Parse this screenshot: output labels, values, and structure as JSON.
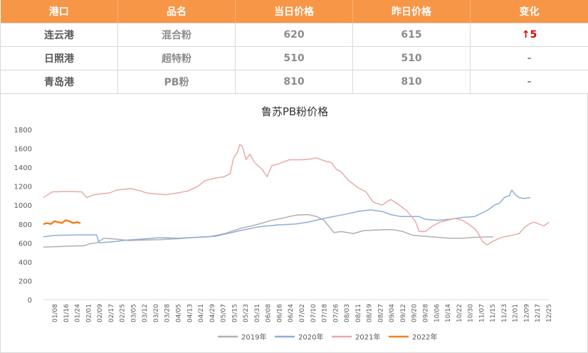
{
  "table": {
    "headers": [
      "港口",
      "品名",
      "当日价格",
      "昨日价格",
      "变化"
    ],
    "rows": [
      {
        "port": "连云港",
        "product": "混合粉",
        "today": "620",
        "yesterday": "615",
        "change": "↑5",
        "up": true
      },
      {
        "port": "日照港",
        "product": "超特粉",
        "today": "510",
        "yesterday": "510",
        "change": "-",
        "up": false
      },
      {
        "port": "青岛港",
        "product": "PB粉",
        "today": "810",
        "yesterday": "810",
        "change": "-",
        "up": false
      }
    ]
  },
  "colors": {
    "header_bg": "#f79646",
    "up": "#e00000",
    "s2019": "#b0b0b0",
    "s2020": "#8eaedb",
    "s2021": "#e8a9a9",
    "s2022": "#f0821e"
  },
  "chart_data": {
    "type": "line",
    "title": "鲁苏PB粉价格",
    "ylim": [
      0,
      1800
    ],
    "yticks": [
      0,
      200,
      400,
      600,
      800,
      1000,
      1200,
      1400,
      1600,
      1800
    ],
    "xticks": [
      "01/08",
      "01/16",
      "01/24",
      "02/01",
      "02/09",
      "02/17",
      "02/25",
      "03/05",
      "03/12",
      "03/20",
      "03/28",
      "04/05",
      "04/13",
      "04/21",
      "04/29",
      "05/07",
      "05/15",
      "05/23",
      "05/31",
      "06/08",
      "06/16",
      "06/24",
      "07/02",
      "07/10",
      "07/18",
      "07/26",
      "08/03",
      "08/11",
      "08/19",
      "08/27",
      "09/04",
      "09/12",
      "09/20",
      "09/28",
      "10/06",
      "10/14",
      "10/22",
      "10/30",
      "11/07",
      "11/15",
      "11/23",
      "12/01",
      "12/09",
      "12/17",
      "12/25"
    ],
    "x_unit": "day of year (1-365)",
    "grid": false,
    "legend_position": "bottom",
    "series": [
      {
        "name": "2019年",
        "color": "#b0b0b0",
        "points": [
          [
            1,
            555
          ],
          [
            20,
            565
          ],
          [
            34,
            570
          ],
          [
            38,
            590
          ],
          [
            44,
            600
          ],
          [
            50,
            650
          ],
          [
            60,
            640
          ],
          [
            70,
            625
          ],
          [
            80,
            630
          ],
          [
            95,
            635
          ],
          [
            110,
            645
          ],
          [
            120,
            655
          ],
          [
            135,
            665
          ],
          [
            148,
            700
          ],
          [
            155,
            730
          ],
          [
            162,
            760
          ],
          [
            170,
            780
          ],
          [
            178,
            810
          ],
          [
            186,
            840
          ],
          [
            194,
            860
          ],
          [
            200,
            880
          ],
          [
            206,
            895
          ],
          [
            215,
            900
          ],
          [
            222,
            880
          ],
          [
            228,
            840
          ],
          [
            233,
            760
          ],
          [
            236,
            710
          ],
          [
            242,
            720
          ],
          [
            252,
            700
          ],
          [
            260,
            730
          ],
          [
            268,
            735
          ],
          [
            276,
            740
          ],
          [
            284,
            740
          ],
          [
            292,
            720
          ],
          [
            300,
            680
          ],
          [
            310,
            670
          ],
          [
            320,
            660
          ],
          [
            330,
            650
          ],
          [
            340,
            650
          ],
          [
            350,
            660
          ],
          [
            365,
            665
          ]
        ]
      },
      {
        "name": "2020年",
        "color": "#8eaedb",
        "points": [
          [
            1,
            665
          ],
          [
            10,
            680
          ],
          [
            30,
            685
          ],
          [
            44,
            685
          ],
          [
            46,
            600
          ],
          [
            60,
            615
          ],
          [
            68,
            630
          ],
          [
            80,
            640
          ],
          [
            95,
            655
          ],
          [
            110,
            650
          ],
          [
            125,
            660
          ],
          [
            140,
            670
          ],
          [
            150,
            700
          ],
          [
            160,
            730
          ],
          [
            175,
            770
          ],
          [
            190,
            790
          ],
          [
            205,
            800
          ],
          [
            215,
            820
          ],
          [
            225,
            850
          ],
          [
            232,
            870
          ],
          [
            240,
            890
          ],
          [
            248,
            910
          ],
          [
            256,
            935
          ],
          [
            266,
            950
          ],
          [
            276,
            930
          ],
          [
            282,
            900
          ],
          [
            290,
            880
          ],
          [
            300,
            880
          ],
          [
            305,
            880
          ],
          [
            310,
            850
          ],
          [
            320,
            840
          ],
          [
            330,
            850
          ],
          [
            340,
            870
          ],
          [
            350,
            880
          ],
          [
            358,
            930
          ],
          [
            362,
            960
          ],
          [
            366,
            1000
          ],
          [
            370,
            1020
          ],
          [
            374,
            1080
          ],
          [
            378,
            1100
          ],
          [
            380,
            1160
          ],
          [
            383,
            1110
          ],
          [
            386,
            1080
          ],
          [
            390,
            1070
          ],
          [
            395,
            1080
          ]
        ]
      },
      {
        "name": "2021年",
        "color": "#e8a9a9",
        "points": [
          [
            1,
            1080
          ],
          [
            8,
            1140
          ],
          [
            20,
            1145
          ],
          [
            32,
            1140
          ],
          [
            36,
            1080
          ],
          [
            42,
            1110
          ],
          [
            55,
            1130
          ],
          [
            60,
            1160
          ],
          [
            72,
            1175
          ],
          [
            80,
            1150
          ],
          [
            84,
            1130
          ],
          [
            90,
            1120
          ],
          [
            100,
            1110
          ],
          [
            110,
            1130
          ],
          [
            118,
            1150
          ],
          [
            126,
            1200
          ],
          [
            132,
            1260
          ],
          [
            138,
            1280
          ],
          [
            142,
            1290
          ],
          [
            147,
            1300
          ],
          [
            152,
            1330
          ],
          [
            155,
            1500
          ],
          [
            158,
            1560
          ],
          [
            160,
            1640
          ],
          [
            162,
            1620
          ],
          [
            165,
            1480
          ],
          [
            168,
            1540
          ],
          [
            172,
            1450
          ],
          [
            178,
            1380
          ],
          [
            182,
            1300
          ],
          [
            186,
            1420
          ],
          [
            190,
            1430
          ],
          [
            196,
            1460
          ],
          [
            200,
            1480
          ],
          [
            210,
            1480
          ],
          [
            218,
            1490
          ],
          [
            222,
            1500
          ],
          [
            228,
            1470
          ],
          [
            234,
            1450
          ],
          [
            238,
            1380
          ],
          [
            242,
            1350
          ],
          [
            248,
            1260
          ],
          [
            255,
            1190
          ],
          [
            262,
            1140
          ],
          [
            268,
            1030
          ],
          [
            275,
            1000
          ],
          [
            282,
            1060
          ],
          [
            288,
            1010
          ],
          [
            295,
            940
          ],
          [
            302,
            830
          ],
          [
            305,
            720
          ],
          [
            310,
            720
          ],
          [
            316,
            780
          ],
          [
            322,
            820
          ],
          [
            328,
            840
          ],
          [
            334,
            860
          ],
          [
            340,
            840
          ],
          [
            345,
            800
          ],
          [
            350,
            750
          ],
          [
            353,
            700
          ],
          [
            356,
            620
          ],
          [
            360,
            580
          ],
          [
            365,
            620
          ],
          [
            372,
            660
          ],
          [
            380,
            680
          ],
          [
            386,
            700
          ],
          [
            390,
            760
          ],
          [
            394,
            800
          ],
          [
            398,
            820
          ],
          [
            402,
            800
          ],
          [
            406,
            780
          ],
          [
            410,
            820
          ]
        ]
      },
      {
        "name": "2022年",
        "color": "#f0821e",
        "points": [
          [
            1,
            800
          ],
          [
            4,
            810
          ],
          [
            7,
            800
          ],
          [
            10,
            830
          ],
          [
            13,
            820
          ],
          [
            16,
            810
          ],
          [
            19,
            840
          ],
          [
            22,
            830
          ],
          [
            25,
            810
          ],
          [
            28,
            820
          ],
          [
            31,
            810
          ]
        ]
      }
    ]
  }
}
